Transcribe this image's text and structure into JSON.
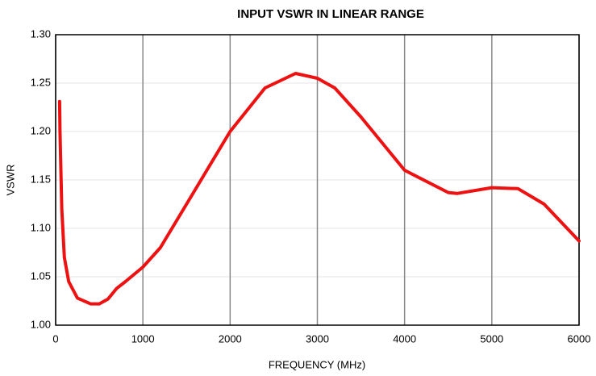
{
  "chart_data": {
    "type": "line",
    "title": "INPUT VSWR IN LINEAR RANGE",
    "x_label": "FREQUENCY (MHz)",
    "y_label": "VSWR",
    "x": [
      45,
      50,
      70,
      100,
      150,
      250,
      400,
      500,
      600,
      700,
      800,
      1000,
      1200,
      1500,
      2000,
      2400,
      2750,
      3000,
      3200,
      3500,
      4000,
      4500,
      4600,
      5000,
      5300,
      5600,
      6000
    ],
    "series": [
      {
        "name": "VSWR",
        "color": "#ee1111",
        "values": [
          1.231,
          1.2,
          1.12,
          1.07,
          1.045,
          1.028,
          1.022,
          1.022,
          1.027,
          1.038,
          1.045,
          1.06,
          1.08,
          1.125,
          1.2,
          1.245,
          1.26,
          1.255,
          1.245,
          1.215,
          1.16,
          1.137,
          1.136,
          1.142,
          1.141,
          1.125,
          1.087
        ]
      }
    ],
    "xlim": [
      0,
      6000
    ],
    "xticks": [
      0,
      1000,
      2000,
      3000,
      4000,
      5000,
      6000
    ],
    "ylim": [
      1.0,
      1.3
    ],
    "yticks": [
      {
        "value": 1.0,
        "label": "1.00"
      },
      1.05,
      {
        "value": 1.1,
        "label": "1.10"
      },
      1.15,
      {
        "value": 1.2,
        "label": "1.20"
      },
      1.25,
      {
        "value": 1.3,
        "label": "1.30"
      }
    ],
    "grid": true
  }
}
